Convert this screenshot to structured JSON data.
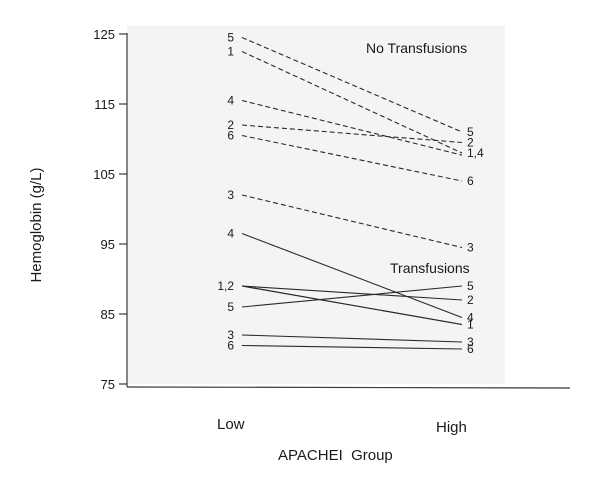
{
  "chart_data": {
    "type": "line",
    "xlabel": "APACHEI  Group",
    "ylabel": "Hemoglobin (g/L)",
    "categories": [
      "Low",
      "High"
    ],
    "ylim": [
      75,
      125
    ],
    "yticks": [
      "125",
      "115",
      "105",
      "95",
      "85",
      "75"
    ],
    "ytick_values": [
      125,
      115,
      105,
      95,
      85,
      75
    ],
    "grid": false,
    "legend": "none",
    "groups": [
      {
        "name": "No Transfusions",
        "style": "dashed",
        "series": [
          {
            "label_low": "5",
            "label_high": "5",
            "values": [
              124.5,
              111.0
            ]
          },
          {
            "label_low": "1",
            "label_high": "1,4",
            "values": [
              122.5,
              108.0
            ]
          },
          {
            "label_low": "4",
            "label_high": "",
            "values": [
              115.5,
              107.7
            ]
          },
          {
            "label_low": "2",
            "label_high": "2",
            "values": [
              112.0,
              109.5
            ]
          },
          {
            "label_low": "6",
            "label_high": "6",
            "values": [
              110.5,
              104.0
            ]
          },
          {
            "label_low": "3",
            "label_high": "3",
            "values": [
              102.0,
              94.5
            ]
          }
        ]
      },
      {
        "name": "Transfusions",
        "style": "solid",
        "series": [
          {
            "label_low": "4",
            "label_high": "4",
            "values": [
              96.5,
              84.5
            ]
          },
          {
            "label_low": "1,2",
            "label_high": "",
            "values": [
              89.0,
              83.5
            ]
          },
          {
            "label_low": "",
            "label_high": "2",
            "values": [
              89.0,
              87.0
            ]
          },
          {
            "label_low": "",
            "label_high": "1",
            "values": [
              89.0,
              83.5
            ]
          },
          {
            "label_low": "5",
            "label_high": "5",
            "values": [
              86.0,
              89.0
            ]
          },
          {
            "label_low": "3",
            "label_high": "3",
            "values": [
              82.0,
              81.0
            ]
          },
          {
            "label_low": "6",
            "label_high": "6",
            "values": [
              80.5,
              80.0
            ]
          }
        ]
      }
    ],
    "colors": {
      "line": "#2a2a2a",
      "panel": "#f4f4f4",
      "axis": "#3a3a3a"
    }
  }
}
